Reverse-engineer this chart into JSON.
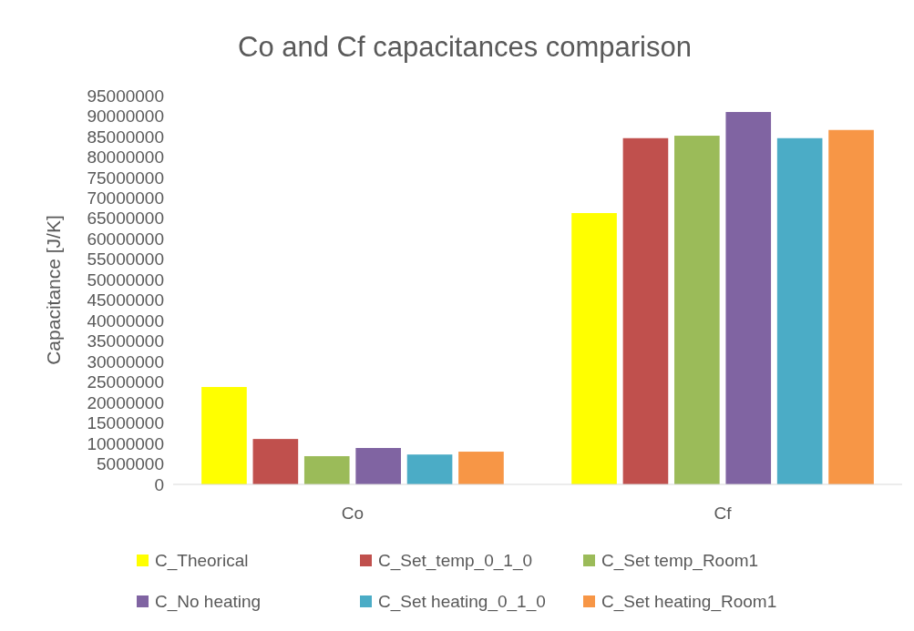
{
  "chart_data": {
    "type": "bar",
    "title": "Co and Cf capacitances comparison",
    "ylabel": "Capacitance [J/K]",
    "categories": [
      "Co",
      "Cf"
    ],
    "series": [
      {
        "name": "C_Theorical",
        "color": "#ffff00",
        "values": [
          23800000,
          66300000
        ]
      },
      {
        "name": "C_Set_temp_0_1_0",
        "color": "#c0504d",
        "values": [
          11100000,
          84600000
        ]
      },
      {
        "name": "C_Set temp_Room1",
        "color": "#9bbb59",
        "values": [
          6900000,
          85200000
        ]
      },
      {
        "name": "C_No heating",
        "color": "#8064a2",
        "values": [
          8900000,
          91000000
        ]
      },
      {
        "name": "C_Set heating_0_1_0",
        "color": "#4bacc6",
        "values": [
          7300000,
          84600000
        ]
      },
      {
        "name": "C_Set heating_Room1",
        "color": "#f79646",
        "values": [
          8000000,
          86600000
        ]
      }
    ],
    "ylim": [
      0,
      95000000
    ],
    "yticks": [
      0,
      5000000,
      10000000,
      15000000,
      20000000,
      25000000,
      30000000,
      35000000,
      40000000,
      45000000,
      50000000,
      55000000,
      60000000,
      65000000,
      70000000,
      75000000,
      80000000,
      85000000,
      90000000,
      95000000
    ],
    "legend": "bottom"
  }
}
